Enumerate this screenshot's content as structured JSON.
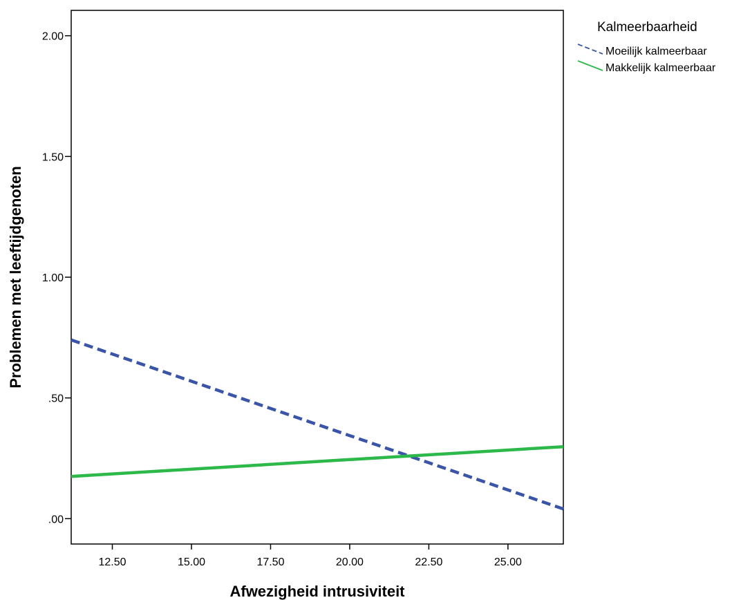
{
  "chart_data": {
    "type": "line",
    "xlabel": "Afwezigheid intrusiviteit",
    "ylabel": "Problemen met leeftijdgenoten",
    "xlim": [
      11.2,
      26.75
    ],
    "ylim": [
      -0.105,
      2.105
    ],
    "x_ticks": [
      12.5,
      15.0,
      17.5,
      20.0,
      22.5,
      25.0
    ],
    "x_tick_labels": [
      "12.50",
      "15.00",
      "17.50",
      "20.00",
      "22.50",
      "25.00"
    ],
    "y_ticks": [
      0.0,
      0.5,
      1.0,
      1.5,
      2.0
    ],
    "y_tick_labels": [
      ".00",
      ".50",
      "1.00",
      "1.50",
      "2.00"
    ],
    "grid": false,
    "legend": {
      "title": "Kalmeerbaarheid",
      "position": "top-right-outside"
    },
    "series": [
      {
        "name": "Moeilijk kalmeerbaar",
        "x": [
          11.2,
          26.75
        ],
        "y": [
          0.74,
          0.04
        ],
        "color": "#3a55a8",
        "line_style": "dashed"
      },
      {
        "name": "Makkelijk kalmeerbaar",
        "x": [
          11.2,
          26.75
        ],
        "y": [
          0.175,
          0.298
        ],
        "color": "#2db84a",
        "line_style": "solid"
      }
    ]
  }
}
